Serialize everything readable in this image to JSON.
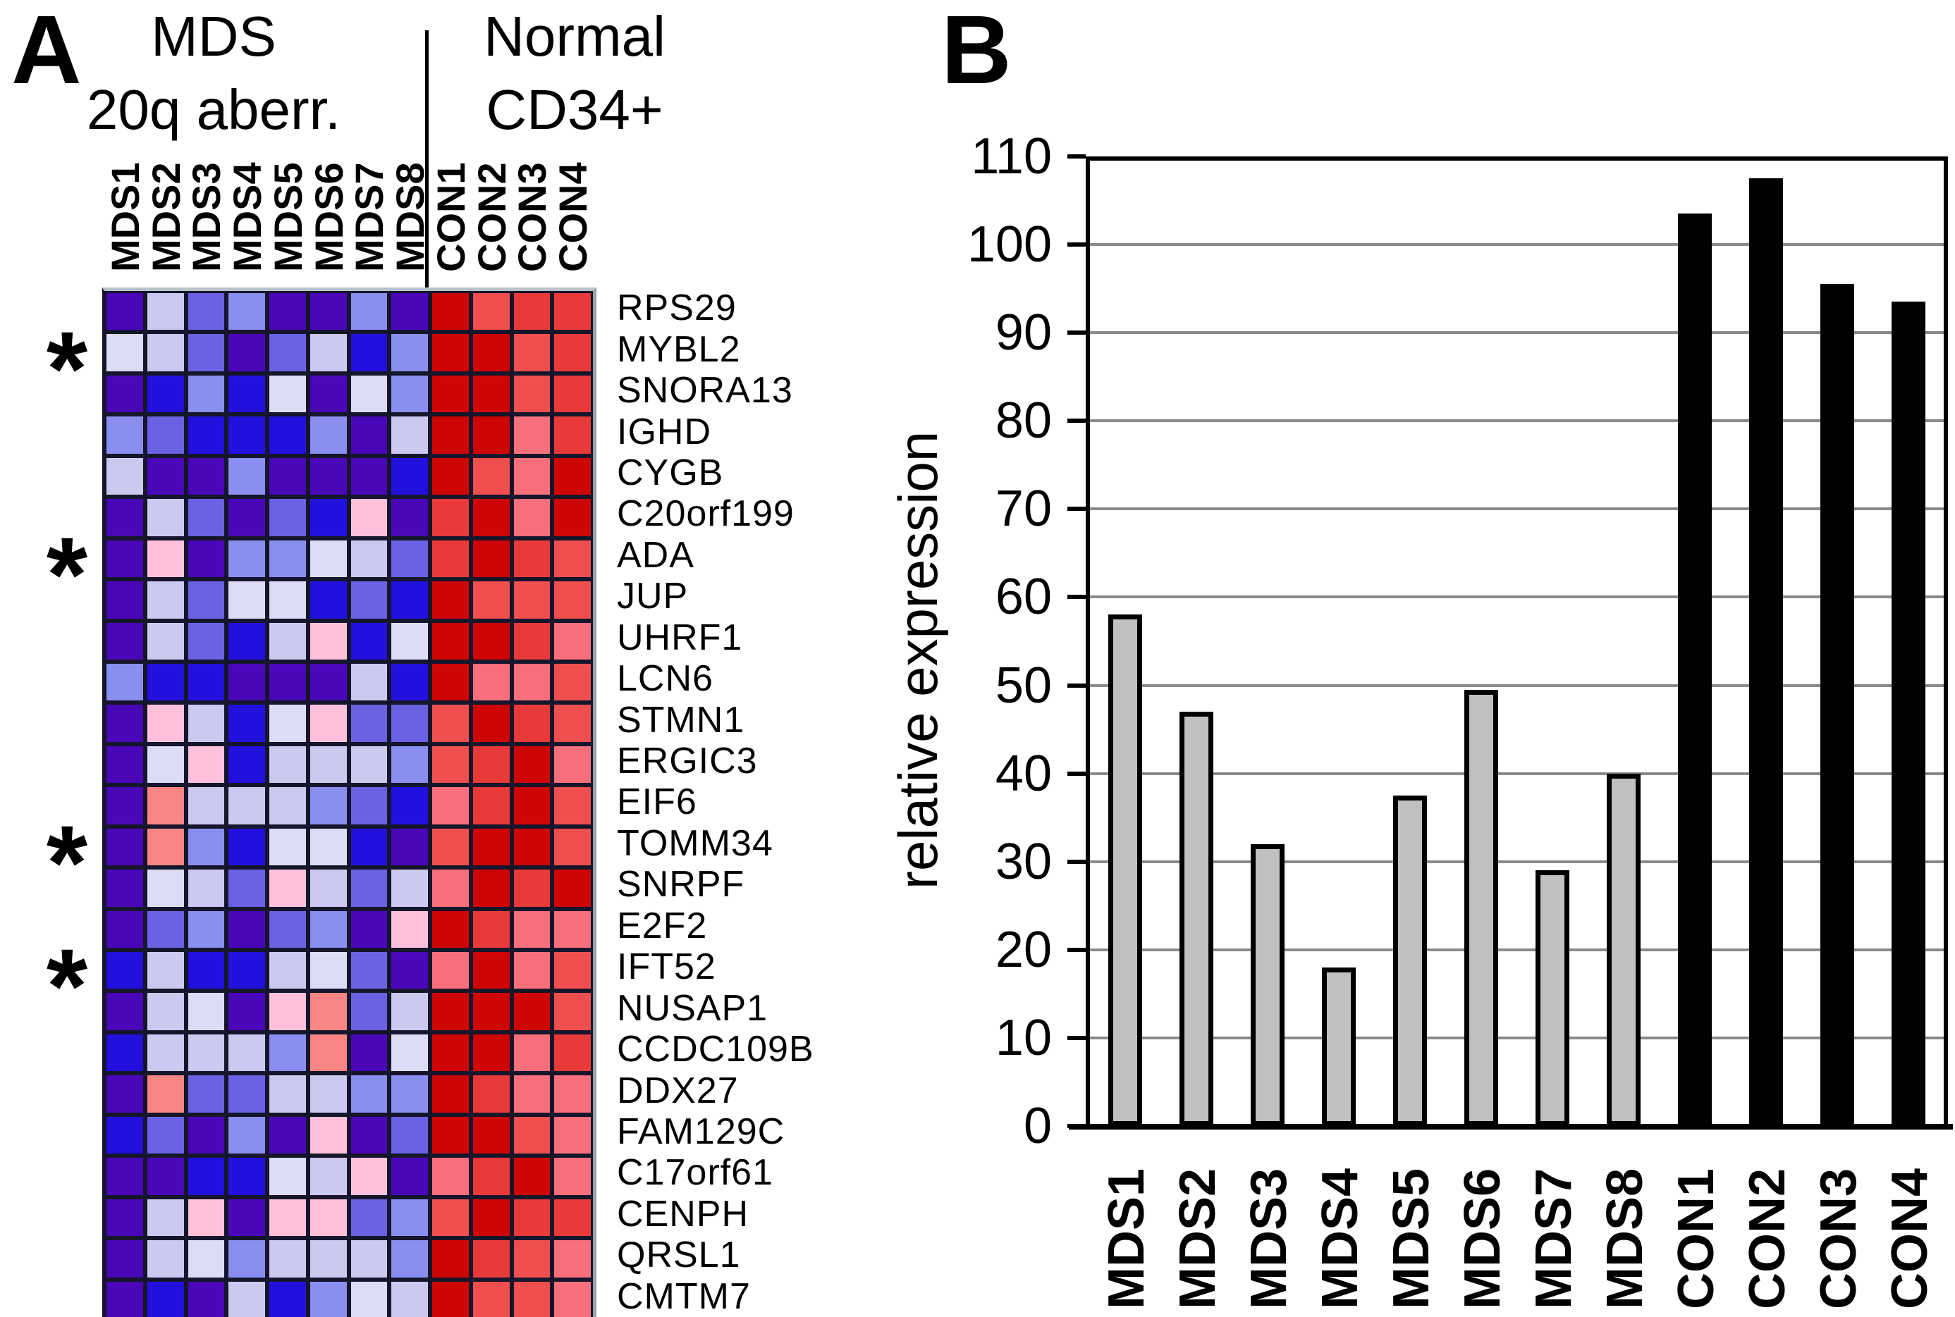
{
  "chart_data": [
    {
      "type": "heatmap",
      "panel": "A",
      "column_groups": [
        {
          "label_line1": "MDS",
          "label_line2": "20q aberr.",
          "columns": [
            "MDS1",
            "MDS2",
            "MDS3",
            "MDS4",
            "MDS5",
            "MDS6",
            "MDS7",
            "MDS8"
          ]
        },
        {
          "label_line1": "Normal",
          "label_line2": "CD34+",
          "columns": [
            "CON1",
            "CON2",
            "CON3",
            "CON4"
          ]
        }
      ],
      "columns": [
        "MDS1",
        "MDS2",
        "MDS3",
        "MDS4",
        "MDS5",
        "MDS6",
        "MDS7",
        "MDS8",
        "CON1",
        "CON2",
        "CON3",
        "CON4"
      ],
      "rows": [
        "RPS29",
        "MYBL2",
        "SNORA13",
        "IGHD",
        "CYGB",
        "C20orf199",
        "ADA",
        "JUP",
        "UHRF1",
        "LCN6",
        "STMN1",
        "ERGIC3",
        "EIF6",
        "TOMM34",
        "SNRPF",
        "E2F2",
        "IFT52",
        "NUSAP1",
        "CCDC109B",
        "DDX27",
        "FAM129C",
        "C17orf61",
        "CENPH",
        "QRSL1",
        "CMTM7"
      ],
      "starred_rows": [
        "MYBL2",
        "ADA",
        "TOMM34",
        "IFT52"
      ],
      "star_marker": "*",
      "palette": {
        "V": "#4A07B8",
        "B": "#2211DD",
        "MB": "#6A62E2",
        "PW": "#8A8EEE",
        "LL": "#CCC9F0",
        "VL": "#DDDCF6",
        "PK": "#FFC0DC",
        "SM": "#FA8585",
        "SP": "#F96F7C",
        "LR": "#EF4F4F",
        "R": "#E93A3A",
        "DR": "#CE0505"
      },
      "cells": [
        [
          "V",
          "LL",
          "MB",
          "PW",
          "V",
          "V",
          "PW",
          "V",
          "DR",
          "LR",
          "R",
          "R"
        ],
        [
          "VL",
          "LL",
          "MB",
          "V",
          "MB",
          "LL",
          "B",
          "PW",
          "DR",
          "DR",
          "LR",
          "R"
        ],
        [
          "V",
          "B",
          "PW",
          "B",
          "VL",
          "V",
          "VL",
          "PW",
          "DR",
          "DR",
          "LR",
          "R"
        ],
        [
          "PW",
          "MB",
          "B",
          "B",
          "B",
          "PW",
          "V",
          "LL",
          "DR",
          "DR",
          "SP",
          "R"
        ],
        [
          "LL",
          "V",
          "V",
          "PW",
          "V",
          "V",
          "V",
          "B",
          "DR",
          "LR",
          "SP",
          "DR"
        ],
        [
          "V",
          "LL",
          "MB",
          "V",
          "MB",
          "B",
          "PK",
          "V",
          "R",
          "DR",
          "SP",
          "DR"
        ],
        [
          "V",
          "PK",
          "V",
          "PW",
          "PW",
          "VL",
          "LL",
          "MB",
          "R",
          "DR",
          "R",
          "LR"
        ],
        [
          "V",
          "LL",
          "MB",
          "VL",
          "VL",
          "B",
          "MB",
          "B",
          "DR",
          "LR",
          "LR",
          "LR"
        ],
        [
          "V",
          "LL",
          "MB",
          "B",
          "LL",
          "PK",
          "B",
          "VL",
          "DR",
          "DR",
          "R",
          "SP"
        ],
        [
          "PW",
          "B",
          "B",
          "V",
          "V",
          "V",
          "LL",
          "B",
          "DR",
          "SP",
          "SP",
          "LR"
        ],
        [
          "V",
          "PK",
          "LL",
          "B",
          "VL",
          "PK",
          "MB",
          "MB",
          "LR",
          "DR",
          "R",
          "LR"
        ],
        [
          "V",
          "VL",
          "PK",
          "B",
          "LL",
          "LL",
          "LL",
          "PW",
          "LR",
          "R",
          "DR",
          "SP"
        ],
        [
          "V",
          "SM",
          "LL",
          "LL",
          "LL",
          "PW",
          "MB",
          "B",
          "SP",
          "R",
          "DR",
          "LR"
        ],
        [
          "V",
          "SM",
          "PW",
          "B",
          "VL",
          "VL",
          "B",
          "V",
          "LR",
          "DR",
          "DR",
          "LR"
        ],
        [
          "V",
          "VL",
          "LL",
          "MB",
          "PK",
          "LL",
          "MB",
          "LL",
          "SP",
          "DR",
          "R",
          "DR"
        ],
        [
          "V",
          "MB",
          "PW",
          "V",
          "MB",
          "PW",
          "V",
          "PK",
          "DR",
          "R",
          "SP",
          "SP"
        ],
        [
          "B",
          "LL",
          "B",
          "B",
          "LL",
          "VL",
          "MB",
          "V",
          "SP",
          "DR",
          "SP",
          "LR"
        ],
        [
          "V",
          "LL",
          "VL",
          "V",
          "PK",
          "SM",
          "MB",
          "LL",
          "DR",
          "DR",
          "DR",
          "LR"
        ],
        [
          "B",
          "LL",
          "LL",
          "LL",
          "PW",
          "SM",
          "V",
          "VL",
          "DR",
          "DR",
          "SP",
          "R"
        ],
        [
          "V",
          "SM",
          "MB",
          "MB",
          "LL",
          "LL",
          "PW",
          "PW",
          "DR",
          "R",
          "SP",
          "SP"
        ],
        [
          "B",
          "MB",
          "V",
          "PW",
          "V",
          "PK",
          "V",
          "MB",
          "DR",
          "DR",
          "LR",
          "SP"
        ],
        [
          "V",
          "V",
          "B",
          "B",
          "VL",
          "LL",
          "PK",
          "V",
          "SP",
          "R",
          "DR",
          "SP"
        ],
        [
          "V",
          "LL",
          "PK",
          "V",
          "PK",
          "PK",
          "MB",
          "PW",
          "LR",
          "DR",
          "R",
          "R"
        ],
        [
          "V",
          "LL",
          "VL",
          "PW",
          "LL",
          "LL",
          "LL",
          "PW",
          "DR",
          "R",
          "LR",
          "SP"
        ],
        [
          "V",
          "B",
          "V",
          "LL",
          "B",
          "PW",
          "VL",
          "LL",
          "DR",
          "LR",
          "LR",
          "SP"
        ]
      ]
    },
    {
      "type": "bar",
      "panel": "B",
      "categories": [
        "MDS1",
        "MDS2",
        "MDS3",
        "MDS4",
        "MDS5",
        "MDS6",
        "MDS7",
        "MDS8",
        "CON1",
        "CON2",
        "CON3",
        "CON4"
      ],
      "values": [
        58,
        47,
        32,
        18,
        37.5,
        49.5,
        29,
        40,
        103.5,
        107.5,
        95.5,
        93.5
      ],
      "series": [
        {
          "name": "MDS",
          "color": "#C0C0C0",
          "categories": [
            "MDS1",
            "MDS2",
            "MDS3",
            "MDS4",
            "MDS5",
            "MDS6",
            "MDS7",
            "MDS8"
          ]
        },
        {
          "name": "CON",
          "color": "#000000",
          "categories": [
            "CON1",
            "CON2",
            "CON3",
            "CON4"
          ]
        }
      ],
      "title": "",
      "xlabel": "",
      "ylabel": "relative expression",
      "ylim": [
        0,
        110
      ],
      "ytick_labels": [
        0,
        10,
        20,
        30,
        40,
        50,
        60,
        70,
        80,
        90,
        100,
        110
      ],
      "grid": true,
      "gridline_color": "#8a8a8a",
      "legend_position": "none"
    }
  ]
}
